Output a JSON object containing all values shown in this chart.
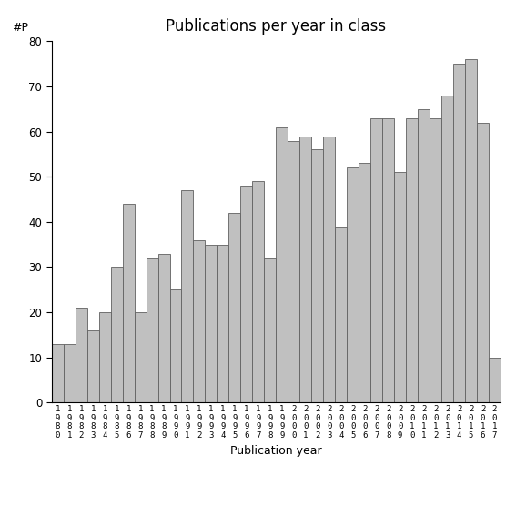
{
  "title": "Publications per year in class",
  "xlabel": "Publication year",
  "ylabel": "#P",
  "years": [
    1980,
    1981,
    1982,
    1983,
    1984,
    1985,
    1986,
    1987,
    1988,
    1989,
    1990,
    1991,
    1992,
    1993,
    1994,
    1995,
    1996,
    1997,
    1998,
    1999,
    2000,
    2001,
    2002,
    2003,
    2004,
    2005,
    2006,
    2007,
    2008,
    2009,
    2010,
    2011,
    2012,
    2013,
    2014,
    2015,
    2016,
    2017
  ],
  "values": [
    13,
    13,
    21,
    16,
    20,
    30,
    44,
    20,
    32,
    33,
    25,
    47,
    36,
    35,
    35,
    42,
    48,
    49,
    32,
    61,
    58,
    59,
    56,
    59,
    39,
    52,
    53,
    63,
    63,
    51,
    63,
    65,
    63,
    68,
    75,
    76,
    62,
    10
  ],
  "bar_color": "#c0c0c0",
  "edge_color": "#606060",
  "ylim": [
    0,
    80
  ],
  "yticks": [
    0,
    10,
    20,
    30,
    40,
    50,
    60,
    70,
    80
  ],
  "background_color": "#ffffff",
  "title_fontsize": 12,
  "label_fontsize": 9,
  "tick_fontsize": 8.5
}
